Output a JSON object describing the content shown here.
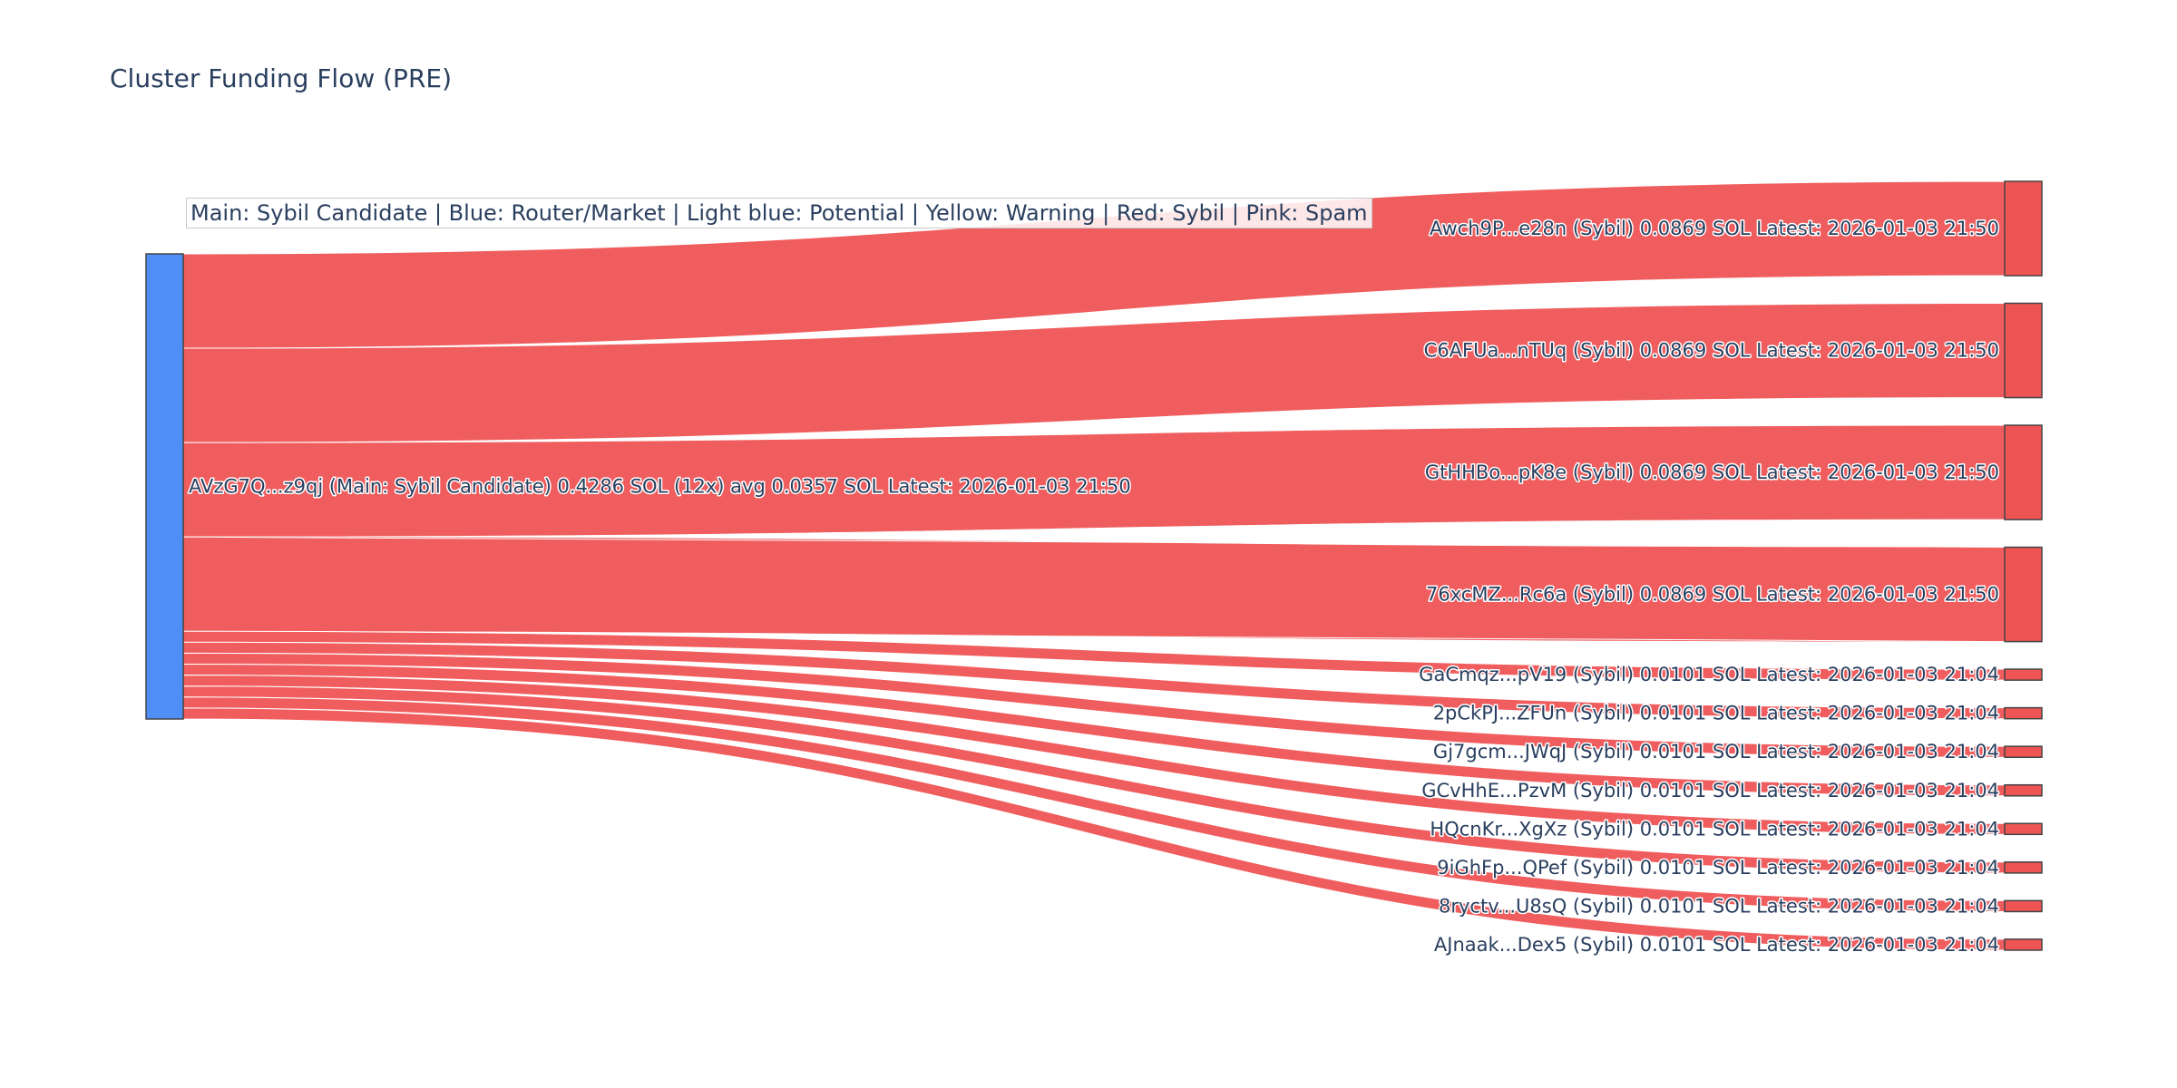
{
  "title": "Cluster Funding Flow (PRE)",
  "legend_note": "Main: Sybil Candidate  |  Blue: Router/Market | Light blue: Potential | Yellow: Warning | Red: Sybil | Pink: Spam",
  "colors": {
    "main_node": "#4f8ff7",
    "sybil": "#ef5455",
    "node_border": "#444444"
  },
  "chart_data": {
    "type": "sankey",
    "title": "Cluster Funding Flow (PRE)",
    "source": {
      "label": "AVzG7Q...z9qj (Main: Sybil Candidate) 0.4286 SOL (12x) avg 0.0357 SOL Latest: 2026-01-03 21:50",
      "category": "Main: Sybil Candidate",
      "total_sol": 0.4286
    },
    "targets": [
      {
        "label": "Awch9P...e28n (Sybil) 0.0869 SOL Latest: 2026-01-03 21:50",
        "value": 0.0869,
        "category": "Sybil"
      },
      {
        "label": "C6AFUa...nTUq (Sybil) 0.0869 SOL Latest: 2026-01-03 21:50",
        "value": 0.0869,
        "category": "Sybil"
      },
      {
        "label": "GtHHBo...pK8e (Sybil) 0.0869 SOL Latest: 2026-01-03 21:50",
        "value": 0.0869,
        "category": "Sybil"
      },
      {
        "label": "76xcMZ...Rc6a (Sybil) 0.0869 SOL Latest: 2026-01-03 21:50",
        "value": 0.0869,
        "category": "Sybil"
      },
      {
        "label": "GaCmqz...pV19 (Sybil) 0.0101 SOL Latest: 2026-01-03 21:04",
        "value": 0.0101,
        "category": "Sybil"
      },
      {
        "label": "2pCkPJ...ZFUn (Sybil) 0.0101 SOL Latest: 2026-01-03 21:04",
        "value": 0.0101,
        "category": "Sybil"
      },
      {
        "label": "Gj7gcm...JWqJ (Sybil) 0.0101 SOL Latest: 2026-01-03 21:04",
        "value": 0.0101,
        "category": "Sybil"
      },
      {
        "label": "GCvHhE...PzvM (Sybil) 0.0101 SOL Latest: 2026-01-03 21:04",
        "value": 0.0101,
        "category": "Sybil"
      },
      {
        "label": "HQcnKr...XgXz (Sybil) 0.0101 SOL Latest: 2026-01-03 21:04",
        "value": 0.0101,
        "category": "Sybil"
      },
      {
        "label": "9iGhFp...QPef (Sybil) 0.0101 SOL Latest: 2026-01-03 21:04",
        "value": 0.0101,
        "category": "Sybil"
      },
      {
        "label": "8ryctv...U8sQ (Sybil) 0.0101 SOL Latest: 2026-01-03 21:04",
        "value": 0.0101,
        "category": "Sybil"
      },
      {
        "label": "AJnaak...Dex5 (Sybil) 0.0101 SOL Latest: 2026-01-03 21:04",
        "value": 0.0101,
        "category": "Sybil"
      }
    ]
  }
}
